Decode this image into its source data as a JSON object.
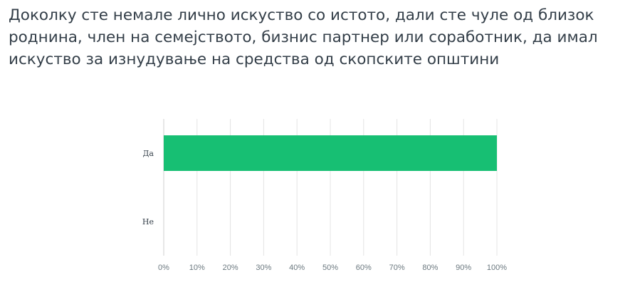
{
  "question": {
    "title": "Доколку сте немале лично искуство со истото, дали сте чуле од близок роднина, член на семејството, бизнис партнер или соработник, да имал искуство за изнудување на средства од скопските општини"
  },
  "colors": {
    "bar": "#17bf73",
    "grid": "#e4e4e4",
    "axis": "#cfcfcf",
    "title_text": "#333e48",
    "tick_text": "#6b787f"
  },
  "chart_data": {
    "type": "bar",
    "orientation": "horizontal",
    "title": "",
    "xlabel": "",
    "ylabel": "",
    "categories": [
      "Да",
      "Не"
    ],
    "values": [
      100,
      0
    ],
    "unit": "%",
    "xlim": [
      0,
      100
    ],
    "x_ticks": [
      "0%",
      "10%",
      "20%",
      "30%",
      "40%",
      "50%",
      "60%",
      "70%",
      "80%",
      "90%",
      "100%"
    ],
    "grid": true,
    "legend": "none"
  }
}
